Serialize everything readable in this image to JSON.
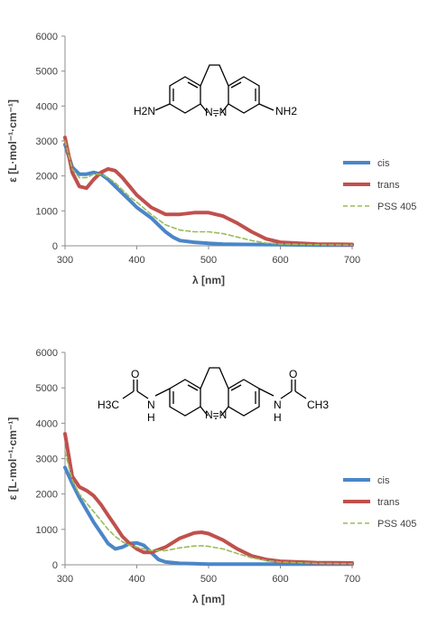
{
  "chart_data": [
    {
      "type": "line",
      "title": "",
      "xlabel": "λ [nm]",
      "ylabel": "ε [L·mol⁻¹·cm⁻¹]",
      "xlim": [
        300,
        700
      ],
      "ylim": [
        0,
        6000
      ],
      "xticks": [
        300,
        400,
        500,
        600,
        700
      ],
      "yticks": [
        0,
        1000,
        2000,
        3000,
        4000,
        5000,
        6000
      ],
      "molecule_labels": {
        "left": "H2N",
        "right": "NH2",
        "azo": "N=N"
      },
      "legend_position": "right",
      "series": [
        {
          "name": "cis",
          "color": "#4a86c8",
          "style": "solid",
          "x": [
            300,
            310,
            320,
            330,
            340,
            350,
            360,
            370,
            380,
            390,
            400,
            420,
            440,
            450,
            460,
            480,
            500,
            520,
            550,
            600,
            650,
            700
          ],
          "y": [
            2900,
            2250,
            2050,
            2050,
            2100,
            2050,
            1900,
            1700,
            1500,
            1300,
            1100,
            800,
            400,
            250,
            150,
            100,
            70,
            50,
            40,
            30,
            20,
            20
          ]
        },
        {
          "name": "trans",
          "color": "#c0504d",
          "style": "solid",
          "x": [
            300,
            310,
            320,
            330,
            340,
            350,
            360,
            370,
            380,
            390,
            400,
            420,
            440,
            460,
            480,
            500,
            520,
            540,
            560,
            580,
            600,
            650,
            700
          ],
          "y": [
            3100,
            2100,
            1700,
            1650,
            1900,
            2100,
            2200,
            2150,
            1950,
            1700,
            1450,
            1100,
            900,
            900,
            950,
            950,
            850,
            650,
            400,
            200,
            100,
            50,
            40
          ]
        },
        {
          "name": "PSS 405",
          "color": "#9bbb59",
          "style": "dashed",
          "x": [
            300,
            310,
            320,
            330,
            340,
            350,
            360,
            370,
            380,
            390,
            400,
            420,
            440,
            460,
            480,
            500,
            520,
            540,
            560,
            580,
            600,
            650,
            700
          ],
          "y": [
            3000,
            2200,
            1950,
            1950,
            2050,
            2050,
            1950,
            1800,
            1600,
            1400,
            1250,
            900,
            600,
            450,
            400,
            400,
            350,
            250,
            150,
            80,
            50,
            30,
            20
          ]
        }
      ]
    },
    {
      "type": "line",
      "title": "",
      "xlabel": "λ [nm]",
      "ylabel": "ε [L·mol⁻¹·cm⁻¹]",
      "xlim": [
        300,
        700
      ],
      "ylim": [
        0,
        6000
      ],
      "xticks": [
        300,
        400,
        500,
        600,
        700
      ],
      "yticks": [
        0,
        1000,
        2000,
        3000,
        4000,
        5000,
        6000
      ],
      "molecule_labels": {
        "left_amide_N": "N",
        "left_amide_H": "H",
        "left_methyl": "H3C",
        "left_oxygen": "O",
        "right_amide_N": "N",
        "right_amide_H": "H",
        "right_methyl": "CH3",
        "right_oxygen": "O",
        "azo": "N=N"
      },
      "legend_position": "right",
      "series": [
        {
          "name": "cis",
          "color": "#4a86c8",
          "style": "solid",
          "x": [
            300,
            310,
            320,
            330,
            340,
            350,
            360,
            370,
            380,
            390,
            400,
            410,
            420,
            430,
            440,
            460,
            480,
            500,
            550,
            600,
            650,
            700
          ],
          "y": [
            2750,
            2300,
            1900,
            1550,
            1200,
            900,
            600,
            450,
            500,
            600,
            620,
            550,
            350,
            150,
            80,
            40,
            30,
            20,
            20,
            20,
            20,
            20
          ]
        },
        {
          "name": "trans",
          "color": "#c0504d",
          "style": "solid",
          "x": [
            300,
            310,
            320,
            330,
            340,
            350,
            360,
            370,
            380,
            390,
            400,
            410,
            420,
            440,
            460,
            480,
            490,
            500,
            520,
            540,
            560,
            580,
            600,
            650,
            700
          ],
          "y": [
            3700,
            2500,
            2200,
            2100,
            1950,
            1700,
            1400,
            1100,
            800,
            600,
            450,
            350,
            350,
            500,
            750,
            900,
            920,
            880,
            700,
            450,
            250,
            150,
            100,
            60,
            50
          ]
        },
        {
          "name": "PSS 405",
          "color": "#9bbb59",
          "style": "dashed",
          "x": [
            300,
            310,
            320,
            330,
            340,
            350,
            360,
            370,
            380,
            390,
            400,
            410,
            420,
            440,
            460,
            480,
            490,
            500,
            520,
            540,
            560,
            580,
            600,
            650,
            700
          ],
          "y": [
            3200,
            2400,
            2000,
            1750,
            1500,
            1250,
            1000,
            800,
            650,
            550,
            500,
            450,
            400,
            400,
            480,
            530,
            540,
            520,
            450,
            320,
            200,
            120,
            80,
            40,
            30
          ]
        }
      ]
    }
  ]
}
